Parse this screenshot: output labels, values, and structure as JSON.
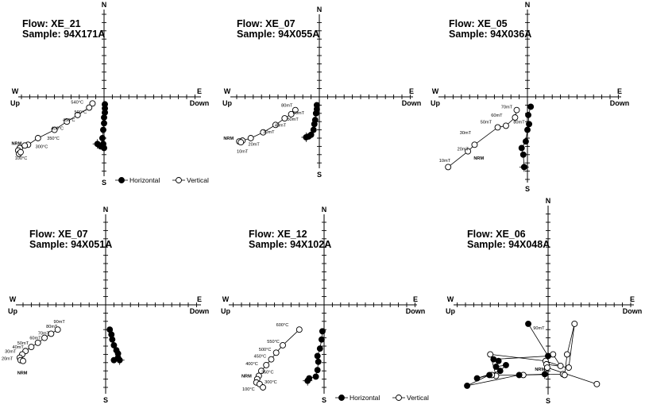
{
  "legend": {
    "horizontal": "Horizontal",
    "vertical": "Vertical"
  },
  "axis_labels": {
    "north": "N",
    "south": "S",
    "west": "W",
    "east": "E",
    "up": "Up",
    "down": "Down"
  },
  "colors": {
    "horizontal_fill": "#000000",
    "vertical_fill": "#ffffff",
    "stroke": "#000000"
  },
  "chart_data": [
    {
      "type": "scatter",
      "flow": "Flow: XE_21",
      "sample": "Sample: 94X171A",
      "legend": true,
      "xlim": [
        -11,
        10
      ],
      "ylim": [
        -10.5,
        10.5
      ],
      "horizontal": [
        [
          0.1,
          -0.9
        ],
        [
          0.1,
          -1.4
        ],
        [
          0.1,
          -1.9
        ],
        [
          0.0,
          -2.5
        ],
        [
          0.0,
          -3.2
        ],
        [
          -0.1,
          -4.0
        ],
        [
          -0.2,
          -5.0
        ],
        [
          -0.1,
          -5.7
        ],
        [
          0.0,
          -6.2
        ],
        [
          -0.4,
          -6.0
        ],
        [
          -0.8,
          -5.7
        ]
      ],
      "vertical": [
        [
          -1.4,
          -0.8
        ],
        [
          -1.8,
          -1.3
        ],
        [
          -3.2,
          -2.2
        ],
        [
          -4.5,
          -3.0
        ],
        [
          -6.0,
          -4.0
        ],
        [
          -8.0,
          -5.0
        ],
        [
          -9.2,
          -5.8
        ],
        [
          -9.6,
          -5.9
        ],
        [
          -10.2,
          -6.2
        ],
        [
          -10.4,
          -6.5
        ],
        [
          -10.3,
          -6.9
        ],
        [
          -10.1,
          -6.7
        ]
      ],
      "labels": [
        {
          "text": "540°C",
          "x": -2.5,
          "y": -0.8,
          "anchor": "end"
        },
        {
          "text": "500°C",
          "x": -2.1,
          "y": -2.0,
          "anchor": "end"
        },
        {
          "text": "450°C",
          "x": -3.5,
          "y": -3.0,
          "anchor": "end"
        },
        {
          "text": "400°C",
          "x": -4.9,
          "y": -4.0,
          "anchor": "end"
        },
        {
          "text": "350°C",
          "x": -5.4,
          "y": -5.2,
          "anchor": "end"
        },
        {
          "text": "300°C",
          "x": -8.3,
          "y": -6.2,
          "anchor": "start"
        },
        {
          "text": "NRM",
          "x": -11.2,
          "y": -5.8,
          "anchor": "start",
          "bold": true
        },
        {
          "text": "100°C",
          "x": -10.8,
          "y": -7.6,
          "anchor": "start"
        }
      ]
    },
    {
      "type": "scatter",
      "flow": "Flow: XE_07",
      "sample": "Sample: 94X055A",
      "legend": false,
      "xlim": [
        -11,
        10
      ],
      "ylim": [
        -10.5,
        10.5
      ],
      "horizontal": [
        [
          -0.3,
          -1.0
        ],
        [
          -0.3,
          -1.5
        ],
        [
          -0.4,
          -2.0
        ],
        [
          -0.5,
          -2.8
        ],
        [
          -0.6,
          -3.3
        ],
        [
          -0.7,
          -4.0
        ],
        [
          -1.0,
          -4.6
        ],
        [
          -1.3,
          -4.8
        ],
        [
          -1.6,
          -4.9
        ]
      ],
      "vertical": [
        [
          -2.9,
          -1.6
        ],
        [
          -3.4,
          -2.1
        ],
        [
          -4.2,
          -2.6
        ],
        [
          -5.3,
          -3.4
        ],
        [
          -6.8,
          -4.3
        ],
        [
          -8.3,
          -5.0
        ],
        [
          -9.3,
          -5.3
        ],
        [
          -9.7,
          -5.4
        ],
        [
          -9.5,
          -5.5
        ]
      ],
      "labels": [
        {
          "text": "80mT",
          "x": -4.6,
          "y": -1.2,
          "anchor": "start"
        },
        {
          "text": "60mT",
          "x": -3.2,
          "y": -2.1,
          "anchor": "start"
        },
        {
          "text": "50mT",
          "x": -3.9,
          "y": -2.9,
          "anchor": "start"
        },
        {
          "text": "40mT",
          "x": -5.4,
          "y": -3.6,
          "anchor": "start"
        },
        {
          "text": "30mT",
          "x": -6.8,
          "y": -4.4,
          "anchor": "start"
        },
        {
          "text": "20mT",
          "x": -8.6,
          "y": -5.9,
          "anchor": "start"
        },
        {
          "text": "NRM",
          "x": -11.6,
          "y": -5.2,
          "anchor": "start",
          "bold": true
        },
        {
          "text": "10mT",
          "x": -10.0,
          "y": -6.8,
          "anchor": "start"
        }
      ]
    },
    {
      "type": "scatter",
      "flow": "Flow: XE_05",
      "sample": "Sample: 94X036A",
      "legend": false,
      "xlim": [
        -11,
        10
      ],
      "ylim": [
        -10.5,
        10.5
      ],
      "horizontal": [
        [
          0.4,
          -1.2
        ],
        [
          0.1,
          -2.2
        ],
        [
          0.2,
          -3.3
        ],
        [
          0.0,
          -4.0
        ],
        [
          -0.2,
          -5.4
        ],
        [
          -0.7,
          -6.2
        ],
        [
          -0.5,
          -7.0
        ],
        [
          -0.4,
          -8.5
        ]
      ],
      "vertical": [
        [
          -1.3,
          -1.6
        ],
        [
          -1.5,
          -2.5
        ],
        [
          -2.6,
          -3.5
        ],
        [
          -3.6,
          -3.7
        ],
        [
          -6.4,
          -5.8
        ],
        [
          -7.2,
          -6.6
        ],
        [
          -9.6,
          -8.5
        ]
      ],
      "labels": [
        {
          "text": "70mT",
          "x": -3.2,
          "y": -1.4,
          "anchor": "start"
        },
        {
          "text": "60mT",
          "x": -4.4,
          "y": -2.4,
          "anchor": "start"
        },
        {
          "text": "50mT",
          "x": -5.7,
          "y": -3.2,
          "anchor": "start"
        },
        {
          "text": "80mT",
          "x": -1.7,
          "y": -3.2,
          "anchor": "start"
        },
        {
          "text": "30mT",
          "x": -8.2,
          "y": -4.5,
          "anchor": "start"
        },
        {
          "text": "20mT",
          "x": -8.5,
          "y": -6.5,
          "anchor": "start"
        },
        {
          "text": "NRM",
          "x": -6.5,
          "y": -7.6,
          "anchor": "start",
          "bold": true
        },
        {
          "text": "10mT",
          "x": -10.7,
          "y": -7.9,
          "anchor": "start"
        }
      ]
    },
    {
      "type": "scatter",
      "flow": "Flow: XE_07",
      "sample": "Sample: 94X051A",
      "legend": false,
      "xlim": [
        -11,
        10
      ],
      "ylim": [
        -10.5,
        10.5
      ],
      "horizontal": [
        [
          0.5,
          -3.0
        ],
        [
          0.7,
          -3.6
        ],
        [
          0.8,
          -4.2
        ],
        [
          1.0,
          -4.9
        ],
        [
          1.3,
          -5.5
        ],
        [
          1.5,
          -5.9
        ],
        [
          1.5,
          -6.4
        ],
        [
          1.0,
          -6.7
        ],
        [
          1.7,
          -6.7
        ]
      ],
      "vertical": [
        [
          -5.8,
          -3.0
        ],
        [
          -6.6,
          -3.5
        ],
        [
          -7.4,
          -4.0
        ],
        [
          -8.2,
          -4.6
        ],
        [
          -9.0,
          -5.1
        ],
        [
          -9.7,
          -5.6
        ],
        [
          -10.1,
          -6.0
        ],
        [
          -10.4,
          -6.4
        ],
        [
          -10.3,
          -6.7
        ],
        [
          -10.0,
          -6.8
        ]
      ],
      "labels": [
        {
          "text": "90mT",
          "x": -6.3,
          "y": -2.2,
          "anchor": "start"
        },
        {
          "text": "80mT",
          "x": -7.2,
          "y": -2.8,
          "anchor": "start"
        },
        {
          "text": "70mT",
          "x": -8.2,
          "y": -3.6,
          "anchor": "start"
        },
        {
          "text": "60mT",
          "x": -9.2,
          "y": -4.2,
          "anchor": "start"
        },
        {
          "text": "50mT",
          "x": -10.7,
          "y": -4.8,
          "anchor": "start"
        },
        {
          "text": "40mT",
          "x": -11.3,
          "y": -5.3,
          "anchor": "start"
        },
        {
          "text": "30mT",
          "x": -12.2,
          "y": -5.8,
          "anchor": "start"
        },
        {
          "text": "20mT",
          "x": -12.6,
          "y": -6.7,
          "anchor": "start"
        },
        {
          "text": "NRM",
          "x": -10.7,
          "y": -8.4,
          "anchor": "start",
          "bold": true
        }
      ]
    },
    {
      "type": "scatter",
      "flow": "Flow: XE_12",
      "sample": "Sample: 94X102A",
      "legend": true,
      "xlim": [
        -11,
        10
      ],
      "ylim": [
        -10.5,
        10.5
      ],
      "horizontal": [
        [
          -0.2,
          -3.2
        ],
        [
          -0.3,
          -4.2
        ],
        [
          -0.5,
          -5.3
        ],
        [
          -0.8,
          -6.2
        ],
        [
          -0.7,
          -6.9
        ],
        [
          -0.8,
          -7.9
        ],
        [
          -1.0,
          -8.7
        ],
        [
          -1.8,
          -8.9
        ],
        [
          -2.0,
          -9.2
        ]
      ],
      "vertical": [
        [
          -3.0,
          -3.0
        ],
        [
          -5.0,
          -4.9
        ],
        [
          -5.8,
          -5.8
        ],
        [
          -6.4,
          -6.6
        ],
        [
          -7.0,
          -7.3
        ],
        [
          -7.6,
          -8.0
        ],
        [
          -7.9,
          -8.6
        ],
        [
          -8.1,
          -9.0
        ],
        [
          -8.2,
          -9.4
        ],
        [
          -7.8,
          -9.6
        ],
        [
          -7.4,
          -10.0
        ]
      ],
      "labels": [
        {
          "text": "600°C",
          "x": -5.8,
          "y": -2.6,
          "anchor": "start"
        },
        {
          "text": "550°C",
          "x": -6.9,
          "y": -4.6,
          "anchor": "start"
        },
        {
          "text": "500°C",
          "x": -7.9,
          "y": -5.6,
          "anchor": "start"
        },
        {
          "text": "450°C",
          "x": -8.5,
          "y": -6.4,
          "anchor": "start"
        },
        {
          "text": "400°C",
          "x": -9.5,
          "y": -7.3,
          "anchor": "start"
        },
        {
          "text": "350°C",
          "x": -7.6,
          "y": -8.3,
          "anchor": "start"
        },
        {
          "text": "NRM",
          "x": -10.0,
          "y": -8.8,
          "anchor": "start",
          "bold": true
        },
        {
          "text": "300°C",
          "x": -7.2,
          "y": -9.5,
          "anchor": "start"
        },
        {
          "text": "100°C",
          "x": -9.9,
          "y": -10.4,
          "anchor": "start"
        }
      ]
    },
    {
      "type": "scatter",
      "flow": "Flow: XE_06",
      "sample": "Sample: 94X048A",
      "legend": false,
      "xlim": [
        -11,
        10
      ],
      "ylim": [
        -10.5,
        10.5
      ],
      "horizontal": [
        [
          -2.4,
          -2.3
        ],
        [
          0.0,
          -6.2
        ],
        [
          -6.6,
          -6.6
        ],
        [
          -6.0,
          -6.8
        ],
        [
          -6.3,
          -7.5
        ],
        [
          -5.1,
          -7.3
        ],
        [
          -5.8,
          -8.0
        ],
        [
          -8.6,
          -8.9
        ],
        [
          -7.1,
          -8.5
        ],
        [
          -9.8,
          -9.8
        ],
        [
          -3.5,
          -8.5
        ],
        [
          -0.4,
          -8.4
        ]
      ],
      "vertical": [
        [
          0.6,
          -6.0
        ],
        [
          1.5,
          -7.4
        ],
        [
          -0.3,
          -6.8
        ],
        [
          -7.0,
          -6.0
        ],
        [
          -6.3,
          -8.6
        ],
        [
          -6.8,
          -8.5
        ],
        [
          -3.0,
          -8.5
        ],
        [
          1.8,
          -8.4
        ],
        [
          2.0,
          -8.5
        ],
        [
          2.3,
          -6.0
        ],
        [
          3.2,
          -2.3
        ],
        [
          2.5,
          -7.6
        ],
        [
          -0.2,
          -7.2
        ],
        [
          -0.1,
          -7.6
        ],
        [
          5.9,
          -9.6
        ]
      ],
      "labels": [
        {
          "text": "90mT",
          "x": -1.8,
          "y": -3.0,
          "anchor": "start"
        },
        {
          "text": "NRM",
          "x": -1.6,
          "y": -8.0,
          "anchor": "start",
          "bold": true
        }
      ]
    }
  ]
}
